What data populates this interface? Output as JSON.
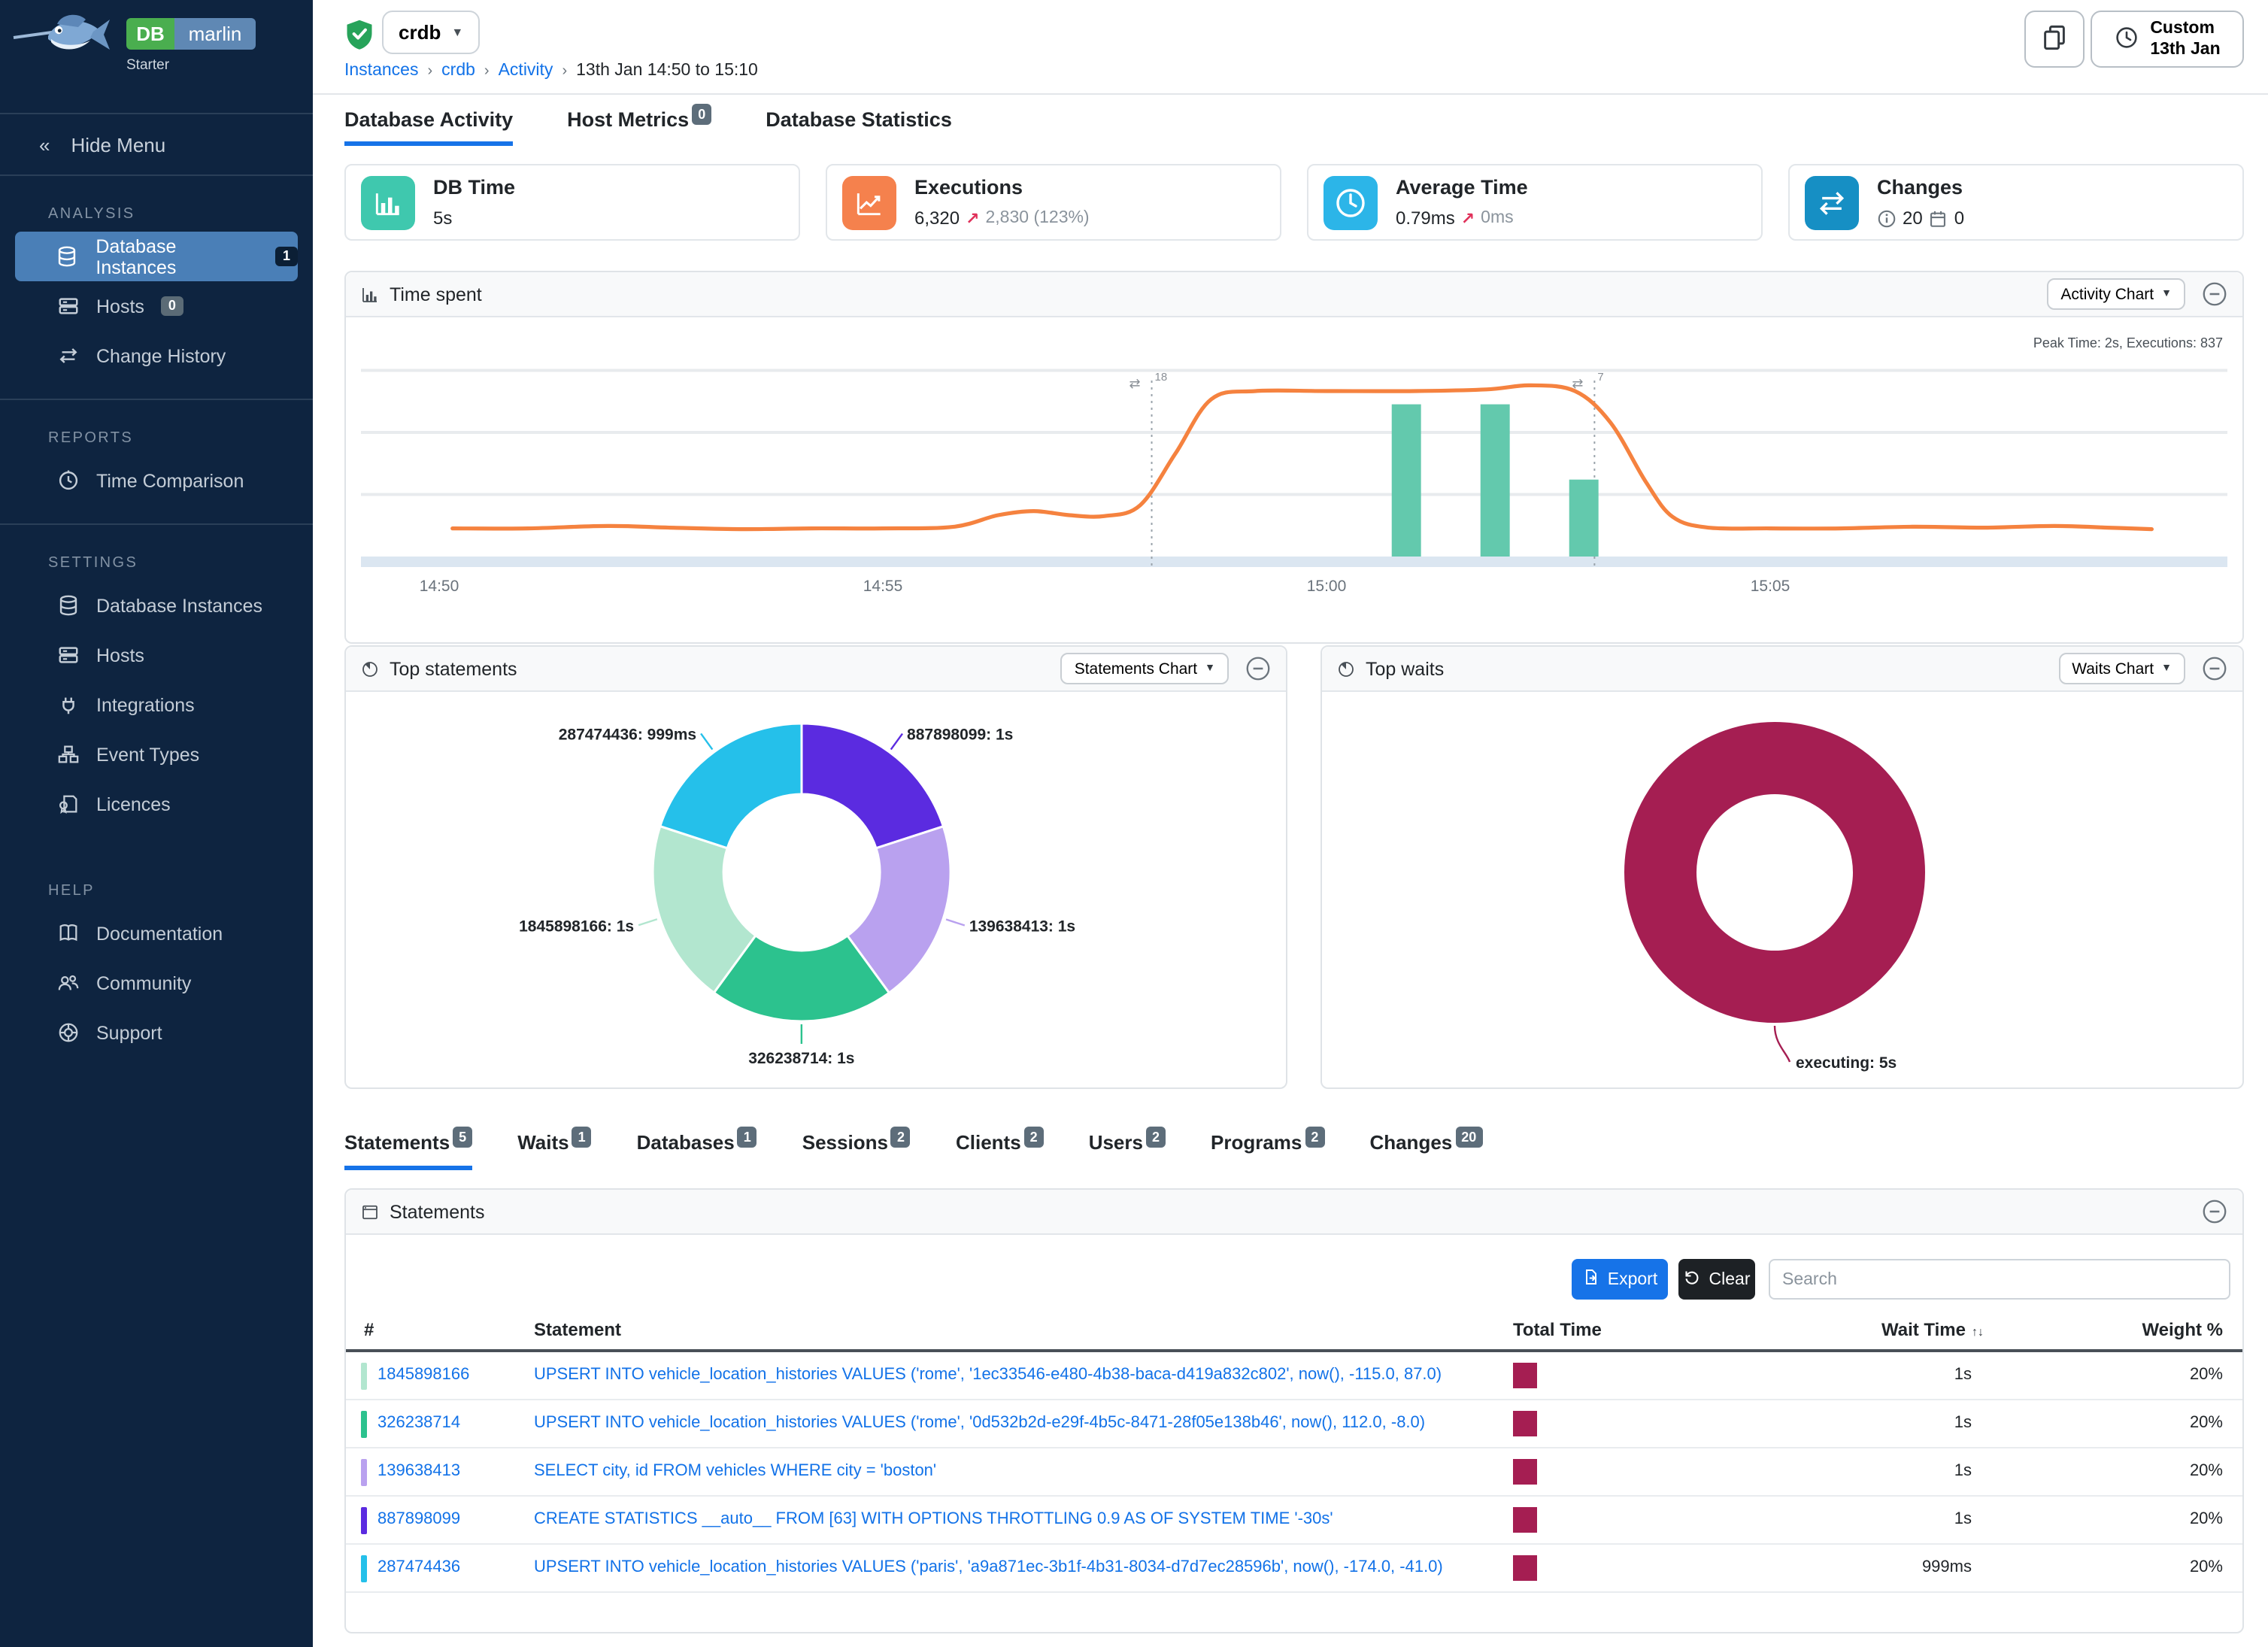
{
  "brand": {
    "logo_db": "DB",
    "logo_name": "marlin",
    "edition": "Starter"
  },
  "sidebar": {
    "hide_menu": "Hide Menu",
    "sections": [
      {
        "title": "ANALYSIS",
        "items": [
          {
            "label": "Database Instances",
            "icon": "database-icon",
            "badge": "1",
            "badge_style": "dark",
            "active": true
          },
          {
            "label": "Hosts",
            "icon": "host-icon",
            "badge": "0",
            "badge_style": "gray",
            "active": false
          },
          {
            "label": "Change History",
            "icon": "change-history-icon",
            "active": false
          }
        ]
      },
      {
        "title": "REPORTS",
        "items": [
          {
            "label": "Time Comparison",
            "icon": "time-comparison-icon",
            "active": false
          }
        ]
      },
      {
        "title": "SETTINGS",
        "items": [
          {
            "label": "Database Instances",
            "icon": "database-icon",
            "active": false
          },
          {
            "label": "Hosts",
            "icon": "host-icon",
            "active": false
          },
          {
            "label": "Integrations",
            "icon": "plug-icon",
            "active": false
          },
          {
            "label": "Event Types",
            "icon": "event-types-icon",
            "active": false
          },
          {
            "label": "Licences",
            "icon": "licence-icon",
            "active": false
          }
        ]
      },
      {
        "title": "HELP",
        "items": [
          {
            "label": "Documentation",
            "icon": "documentation-icon",
            "active": false
          },
          {
            "label": "Community",
            "icon": "community-icon",
            "active": false
          },
          {
            "label": "Support",
            "icon": "support-icon",
            "active": false
          }
        ]
      }
    ]
  },
  "topbar": {
    "instance_selector": "crdb",
    "breadcrumb": [
      "Instances",
      "crdb",
      "Activity",
      "13th Jan 14:50 to 15:10"
    ],
    "time_range_button": {
      "line1": "Custom",
      "line2": "13th Jan"
    }
  },
  "page_tabs": [
    {
      "label": "Database Activity",
      "active": true
    },
    {
      "label": "Host Metrics",
      "badge": "0",
      "active": false
    },
    {
      "label": "Database Statistics",
      "active": false
    }
  ],
  "stat_cards": [
    {
      "icon": "bar-chart-icon",
      "color": "#3fc8ae",
      "title": "DB Time",
      "value": "5s"
    },
    {
      "icon": "line-chart-icon",
      "color": "#f5814d",
      "title": "Executions",
      "value": "6,320",
      "trend_arrow": "↗",
      "trend": "2,830 (123%)"
    },
    {
      "icon": "clock-icon",
      "color": "#2cb5e8",
      "title": "Average Time",
      "value": "0.79ms",
      "trend_arrow": "↗",
      "trend": "0ms"
    },
    {
      "icon": "swap-icon",
      "color": "#168fc4",
      "title": "Changes",
      "info_count": "20",
      "calendar_count": "0"
    }
  ],
  "panels": {
    "time_spent": {
      "title": "Time spent",
      "icon": "bar-chart-icon",
      "dropdown": "Activity Chart"
    },
    "top_statements": {
      "title": "Top statements",
      "icon": "pie-chart-icon",
      "dropdown": "Statements Chart"
    },
    "top_waits": {
      "title": "Top waits",
      "icon": "pie-chart-icon",
      "dropdown": "Waits Chart"
    },
    "statements_table": {
      "title": "Statements",
      "icon": "window-icon",
      "export_label": "Export",
      "clear_label": "Clear",
      "search_placeholder": "Search",
      "columns": [
        "#",
        "Statement",
        "Total Time",
        "Wait Time",
        "Weight %"
      ],
      "rows": [
        {
          "id": "1845898166",
          "color": "#b2e6cf",
          "statement": "UPSERT INTO vehicle_location_histories VALUES ('rome', '1ec33546-e480-4b38-baca-d419a832c802', now(), -115.0, 87.0)",
          "wait_time": "1s",
          "weight": "20%"
        },
        {
          "id": "326238714",
          "color": "#2cc28e",
          "statement": "UPSERT INTO vehicle_location_histories VALUES ('rome', '0d532b2d-e29f-4b5c-8471-28f05e138b46', now(), 112.0, -8.0)",
          "wait_time": "1s",
          "weight": "20%"
        },
        {
          "id": "139638413",
          "color": "#b9a1ef",
          "statement": "SELECT city, id FROM vehicles WHERE city = 'boston'",
          "wait_time": "1s",
          "weight": "20%"
        },
        {
          "id": "887898099",
          "color": "#5b2be0",
          "statement": "CREATE STATISTICS __auto__ FROM [63] WITH OPTIONS THROTTLING 0.9 AS OF SYSTEM TIME '-30s'",
          "wait_time": "1s",
          "weight": "20%"
        },
        {
          "id": "287474436",
          "color": "#25c0ea",
          "statement": "UPSERT INTO vehicle_location_histories VALUES ('paris', 'a9a871ec-3b1f-4b31-8034-d7d7ec28596b', now(), -174.0, -41.0)",
          "wait_time": "999ms",
          "weight": "20%"
        }
      ]
    }
  },
  "bottom_tabs": [
    {
      "label": "Statements",
      "badge": "5",
      "active": true
    },
    {
      "label": "Waits",
      "badge": "1",
      "active": false
    },
    {
      "label": "Databases",
      "badge": "1",
      "active": false
    },
    {
      "label": "Sessions",
      "badge": "2",
      "active": false
    },
    {
      "label": "Clients",
      "badge": "2",
      "active": false
    },
    {
      "label": "Users",
      "badge": "2",
      "active": false
    },
    {
      "label": "Programs",
      "badge": "2",
      "active": false
    },
    {
      "label": "Changes",
      "badge": "20",
      "active": false
    }
  ],
  "chart_data": [
    {
      "id": "time_spent",
      "type": "line+bar",
      "title": "Time spent",
      "xticks": [
        {
          "x": 0,
          "label": "14:50"
        },
        {
          "x": 5,
          "label": "14:55"
        },
        {
          "x": 10,
          "label": "15:00"
        },
        {
          "x": 15,
          "label": "15:05"
        }
      ],
      "ylim": [
        0,
        2.9
      ],
      "gridlines": [
        0.75,
        1.5,
        2.25
      ],
      "grid": "horizontal",
      "line_series": {
        "name": "DB Time (s)",
        "color": "#f5823f",
        "points": [
          [
            0.15,
            0.34
          ],
          [
            1,
            0.34
          ],
          [
            1.9,
            0.37
          ],
          [
            2.6,
            0.35
          ],
          [
            3.4,
            0.33
          ],
          [
            4.2,
            0.34
          ],
          [
            5,
            0.34
          ],
          [
            5.8,
            0.36
          ],
          [
            6.3,
            0.5
          ],
          [
            6.7,
            0.55
          ],
          [
            7.1,
            0.5
          ],
          [
            7.5,
            0.49
          ],
          [
            7.9,
            0.62
          ],
          [
            8.3,
            1.25
          ],
          [
            8.7,
            1.9
          ],
          [
            9.2,
            2.0
          ],
          [
            10,
            2.0
          ],
          [
            11,
            2.0
          ],
          [
            11.8,
            2.02
          ],
          [
            12.3,
            2.07
          ],
          [
            12.8,
            2.0
          ],
          [
            13.2,
            1.62
          ],
          [
            13.6,
            0.9
          ],
          [
            13.9,
            0.48
          ],
          [
            14.3,
            0.35
          ],
          [
            15,
            0.34
          ],
          [
            15.8,
            0.34
          ],
          [
            16.6,
            0.36
          ],
          [
            17.4,
            0.35
          ],
          [
            18.2,
            0.37
          ],
          [
            18.8,
            0.35
          ],
          [
            19.3,
            0.33
          ]
        ]
      },
      "bar_series": {
        "name": "Executions",
        "color": "#63c9ad",
        "bar_width": 0.33,
        "points": [
          [
            10.9,
            1.84
          ],
          [
            11.9,
            1.84
          ],
          [
            12.9,
            0.93
          ]
        ]
      },
      "event_markers": [
        {
          "x": 8.03,
          "label": "18"
        },
        {
          "x": 13.02,
          "label": "7"
        }
      ],
      "note": "Peak Time: 2s, Executions: 837"
    },
    {
      "id": "top_statements",
      "type": "donut",
      "start_angle_deg": 0,
      "slices": [
        {
          "label": "887898099: 1s",
          "value_ms": 1000,
          "color": "#5b2be0"
        },
        {
          "label": "139638413: 1s",
          "value_ms": 1000,
          "color": "#b9a1ef"
        },
        {
          "label": "326238714: 1s",
          "value_ms": 1000,
          "color": "#2cc28e"
        },
        {
          "label": "1845898166: 1s",
          "value_ms": 1000,
          "color": "#b2e6cf"
        },
        {
          "label": "287474436: 999ms",
          "value_ms": 999,
          "color": "#25c0ea"
        }
      ]
    },
    {
      "id": "top_waits",
      "type": "donut",
      "start_angle_deg": 0,
      "slices": [
        {
          "label": "executing: 5s",
          "value_ms": 5000,
          "color": "#a51e52"
        }
      ]
    }
  ]
}
